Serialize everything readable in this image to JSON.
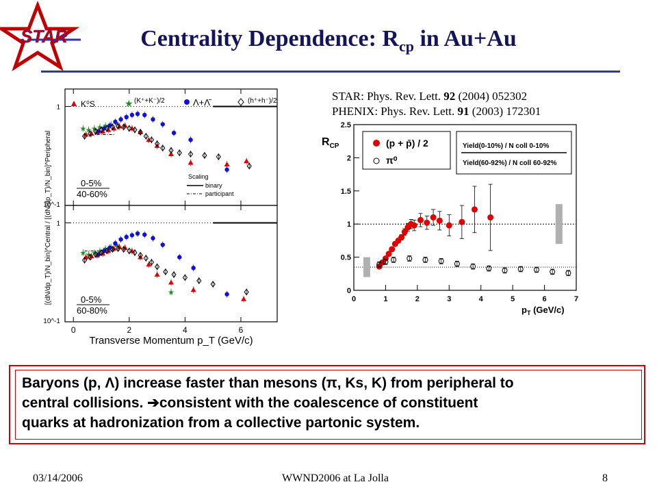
{
  "slide": {
    "title_main": "Centrality Dependence: R",
    "title_sub": "cp",
    "title_rest": " in Au+Au",
    "logo_text": "STAR",
    "refs": [
      {
        "prefix": "STAR: Phys. Rev. Lett. ",
        "vol": "92",
        "rest": " (2004) 052302"
      },
      {
        "prefix": "PHENIX: Phys. Rev. Lett. ",
        "vol": "91",
        "rest": " (2003) 172301"
      }
    ],
    "summary_line1": "Baryons (p, Λ) increase faster than mesons (π, Ks, K)  from peripheral to",
    "summary_line2": "central collisions. ➔consistent with the coalescence of constituent",
    "summary_line3": "quarks at hadronization from a collective partonic system.",
    "footer_date": "03/14/2006",
    "footer_event": "WWND2006 at La Jolla",
    "footer_page": "8",
    "colors": {
      "title": "#14145a",
      "rule": "#3434a6",
      "box": "#d00000",
      "red": "#e00000",
      "blue": "#1010dd",
      "green": "#1e8c1e"
    }
  },
  "chart_data": [
    {
      "type": "scatter",
      "panel": "STAR top (0-5% / 40-60%)",
      "xlabel": "Transverse Momentum p_T (GeV/c)",
      "ylabel": "[(dN/dp_T)/N_bin]^Central / [(dN/dp_T)/N_bin]^Peripheral",
      "xlim": [
        -0.3,
        7.3
      ],
      "ylim_log": [
        0.1,
        1.5
      ],
      "x_ticks": [
        "0",
        "2",
        "4",
        "6"
      ],
      "y_ticks": [
        "1",
        "10^-1"
      ],
      "centrality_top": "0-5%",
      "centrality_bottom": "40-60%",
      "legend": {
        "scaling": "Scaling",
        "binary": "binary",
        "participant": "participant"
      },
      "legend_labels": {
        "k0s": "K⁰S",
        "kpm": "(K⁺+K⁻)/2",
        "lam": "Λ+Λ̄",
        "h": "(h⁺+h⁻)/2"
      },
      "series": [
        {
          "name": "K0S",
          "marker": "triangle",
          "color": "#e00000",
          "x": [
            0.45,
            0.65,
            0.85,
            1.05,
            1.25,
            1.45,
            1.65,
            1.85,
            2.1,
            2.4,
            2.7,
            3.0,
            3.5,
            4.2,
            5.5,
            6.2
          ],
          "y": [
            0.52,
            0.53,
            0.55,
            0.56,
            0.58,
            0.6,
            0.63,
            0.64,
            0.6,
            0.55,
            0.46,
            0.4,
            0.33,
            0.27,
            0.26,
            0.28
          ]
        },
        {
          "name": "K+K-/2",
          "marker": "star",
          "color": "#1e8c1e",
          "x": [
            0.35,
            0.55,
            0.75,
            0.95,
            1.15,
            1.35,
            1.55
          ],
          "y": [
            0.6,
            0.58,
            0.6,
            0.62,
            0.64,
            0.66,
            0.68
          ]
        },
        {
          "name": "Lambda+AntiLambda",
          "marker": "circle",
          "color": "#1010dd",
          "x": [
            0.9,
            1.1,
            1.3,
            1.5,
            1.7,
            1.9,
            2.1,
            2.3,
            2.55,
            2.85,
            3.2,
            3.6,
            4.2,
            5.5
          ],
          "y": [
            0.56,
            0.6,
            0.64,
            0.7,
            0.74,
            0.78,
            0.82,
            0.84,
            0.82,
            0.74,
            0.66,
            0.54,
            0.46,
            0.23
          ]
        },
        {
          "name": "h+h-/2",
          "marker": "diamond",
          "color": "#000000",
          "x": [
            0.4,
            0.6,
            0.8,
            1.0,
            1.2,
            1.4,
            1.6,
            1.8,
            2.0,
            2.2,
            2.4,
            2.6,
            2.8,
            3.0,
            3.2,
            3.5,
            3.8,
            4.2,
            4.7,
            5.2,
            6.3
          ],
          "y": [
            0.5,
            0.53,
            0.56,
            0.58,
            0.6,
            0.62,
            0.63,
            0.62,
            0.6,
            0.58,
            0.55,
            0.5,
            0.46,
            0.42,
            0.38,
            0.36,
            0.34,
            0.33,
            0.32,
            0.31,
            0.25
          ]
        }
      ]
    },
    {
      "type": "scatter",
      "panel": "STAR bottom (0-5% / 60-80%)",
      "xlim": [
        -0.3,
        7.3
      ],
      "ylim_log": [
        0.1,
        1.5
      ],
      "centrality_top": "0-5%",
      "centrality_bottom": "60-80%",
      "series": [
        {
          "name": "K0S",
          "marker": "triangle",
          "color": "#e00000",
          "x": [
            0.45,
            0.65,
            0.85,
            1.05,
            1.25,
            1.45,
            1.65,
            1.85,
            2.1,
            2.4,
            2.7,
            3.0,
            3.5,
            4.3,
            6.1
          ],
          "y": [
            0.45,
            0.46,
            0.47,
            0.49,
            0.52,
            0.55,
            0.57,
            0.56,
            0.52,
            0.45,
            0.38,
            0.3,
            0.25,
            0.21,
            0.17
          ]
        },
        {
          "name": "K+K-/2",
          "marker": "star",
          "color": "#1e8c1e",
          "x": [
            0.35,
            0.55,
            0.75,
            0.95,
            1.15,
            1.35,
            1.55,
            3.5
          ],
          "y": [
            0.5,
            0.48,
            0.5,
            0.52,
            0.55,
            0.57,
            0.6,
            0.2
          ]
        },
        {
          "name": "Lambda+AntiLambda",
          "marker": "circle",
          "color": "#1010dd",
          "x": [
            0.9,
            1.1,
            1.3,
            1.5,
            1.7,
            1.9,
            2.1,
            2.3,
            2.55,
            2.85,
            3.2,
            3.8,
            4.3,
            5.5
          ],
          "y": [
            0.48,
            0.52,
            0.56,
            0.62,
            0.68,
            0.72,
            0.75,
            0.78,
            0.76,
            0.7,
            0.6,
            0.45,
            0.35,
            0.19
          ]
        },
        {
          "name": "h+h-/2",
          "marker": "diamond",
          "color": "#000000",
          "x": [
            0.4,
            0.6,
            0.8,
            1.0,
            1.2,
            1.4,
            1.6,
            1.8,
            2.0,
            2.2,
            2.4,
            2.6,
            2.8,
            3.0,
            3.3,
            3.6,
            4.0,
            4.5,
            5.0,
            6.2
          ],
          "y": [
            0.42,
            0.45,
            0.48,
            0.5,
            0.52,
            0.54,
            0.55,
            0.54,
            0.52,
            0.5,
            0.47,
            0.44,
            0.4,
            0.36,
            0.32,
            0.3,
            0.28,
            0.26,
            0.24,
            0.2
          ]
        }
      ]
    },
    {
      "type": "scatter",
      "panel": "PHENIX Rcp",
      "xlabel": "p_T (GeV/c)",
      "ylabel": "R_CP",
      "xlim": [
        0,
        7
      ],
      "ylim": [
        0,
        2.5
      ],
      "x_ticks": [
        "0",
        "1",
        "2",
        "3",
        "4",
        "5",
        "6",
        "7"
      ],
      "y_ticks": [
        "0.5",
        "1",
        "1.5",
        "2",
        "2.5"
      ],
      "legend": {
        "p": "(p + p̄) / 2",
        "pi0": "π⁰"
      },
      "formula": {
        "num": "Yield(0-10%) / N coll 0-10%",
        "den": "Yield(60-92%) / N coll 60-92%"
      },
      "series": [
        {
          "name": "(p + p-bar)/2",
          "marker": "filled-circle",
          "color": "#e00000",
          "x": [
            0.8,
            0.9,
            1.0,
            1.1,
            1.2,
            1.3,
            1.4,
            1.5,
            1.6,
            1.7,
            1.8,
            1.9,
            2.1,
            2.3,
            2.5,
            2.7,
            3.0,
            3.4,
            3.8,
            4.3
          ],
          "y": [
            0.36,
            0.42,
            0.48,
            0.55,
            0.62,
            0.7,
            0.75,
            0.8,
            0.88,
            0.95,
            1.0,
            0.98,
            1.06,
            1.02,
            1.1,
            1.05,
            0.98,
            1.03,
            1.22,
            1.1
          ],
          "err": [
            0.03,
            0.03,
            0.03,
            0.03,
            0.03,
            0.03,
            0.03,
            0.04,
            0.05,
            0.06,
            0.07,
            0.08,
            0.1,
            0.1,
            0.12,
            0.14,
            0.16,
            0.25,
            0.35,
            0.5
          ]
        },
        {
          "name": "pi0",
          "marker": "open-circle",
          "color": "#000000",
          "x": [
            0.8,
            1.0,
            1.25,
            1.75,
            2.25,
            2.75,
            3.25,
            3.75,
            4.25,
            4.75,
            5.25,
            5.75,
            6.25,
            6.75
          ],
          "y": [
            0.39,
            0.43,
            0.46,
            0.48,
            0.46,
            0.44,
            0.4,
            0.36,
            0.33,
            0.3,
            0.32,
            0.31,
            0.28,
            0.26
          ],
          "err": [
            0.04,
            0.04,
            0.04,
            0.04,
            0.04,
            0.04,
            0.04,
            0.04,
            0.04,
            0.04,
            0.04,
            0.04,
            0.04,
            0.04
          ]
        }
      ]
    }
  ]
}
